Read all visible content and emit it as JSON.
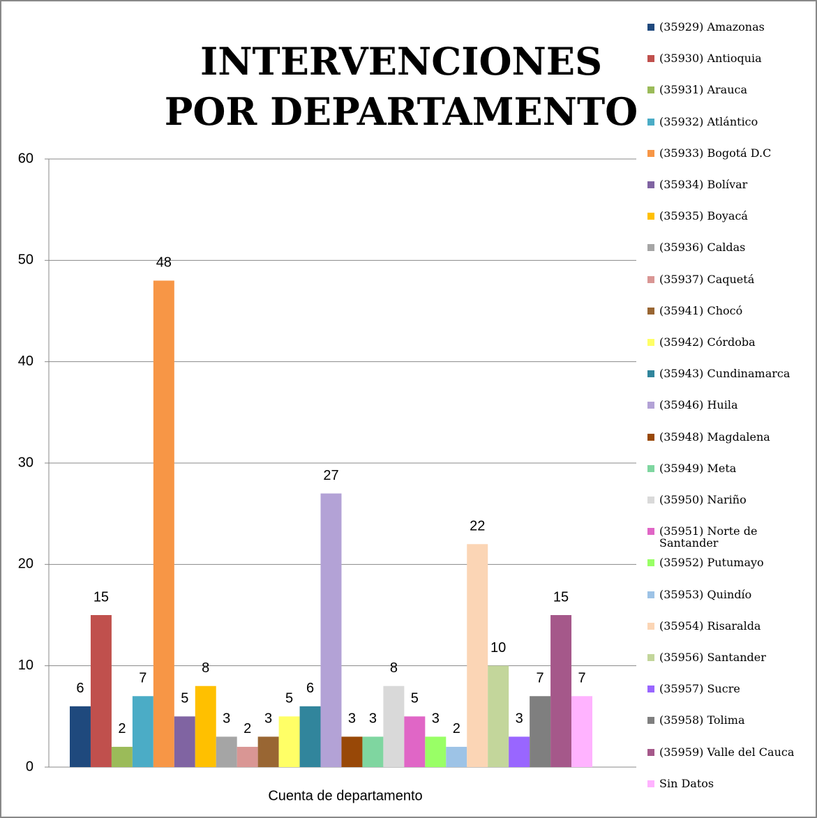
{
  "chart_data": {
    "type": "bar",
    "title": "INTERVENCIONES POR DEPARTAMENTO",
    "categories": [
      "Cuenta de departamento"
    ],
    "ylim": [
      0,
      60
    ],
    "yticks": [
      0,
      10,
      20,
      30,
      40,
      50,
      60
    ],
    "grid": true,
    "legend": "right",
    "series": [
      {
        "name": "(35929) Amazonas",
        "color": "#1f497d",
        "values": [
          6
        ]
      },
      {
        "name": "(35930) Antioquia",
        "color": "#c0504d",
        "values": [
          15
        ]
      },
      {
        "name": "(35931) Arauca",
        "color": "#9bbb59",
        "values": [
          2
        ]
      },
      {
        "name": "(35932) Atlántico",
        "color": "#4bacc6",
        "values": [
          7
        ]
      },
      {
        "name": "(35933) Bogotá D.C",
        "color": "#f79646",
        "values": [
          48
        ]
      },
      {
        "name": "(35934) Bolívar",
        "color": "#8064a2",
        "values": [
          5
        ]
      },
      {
        "name": "(35935) Boyacá",
        "color": "#ffc000",
        "values": [
          8
        ]
      },
      {
        "name": "(35936) Caldas",
        "color": "#a5a5a5",
        "values": [
          3
        ]
      },
      {
        "name": "(35937) Caquetá",
        "color": "#d99694",
        "values": [
          2
        ]
      },
      {
        "name": "(35941) Chocó",
        "color": "#996633",
        "values": [
          3
        ]
      },
      {
        "name": "(35942) Córdoba",
        "color": "#ffff66",
        "values": [
          5
        ]
      },
      {
        "name": "(35943) Cundinamarca",
        "color": "#31859c",
        "values": [
          6
        ]
      },
      {
        "name": "(35946) Huila",
        "color": "#b3a2d6",
        "values": [
          27
        ]
      },
      {
        "name": "(35948) Magdalena",
        "color": "#984807",
        "values": [
          3
        ]
      },
      {
        "name": "(35949) Meta",
        "color": "#7fd6a0",
        "values": [
          3
        ]
      },
      {
        "name": "(35950) Nariño",
        "color": "#d9d9d9",
        "values": [
          8
        ]
      },
      {
        "name": "(35951) Norte de Santander",
        "color": "#e066c6",
        "values": [
          5
        ]
      },
      {
        "name": "(35952) Putumayo",
        "color": "#99ff66",
        "values": [
          3
        ]
      },
      {
        "name": "(35953) Quindío",
        "color": "#9dc3e6",
        "values": [
          2
        ]
      },
      {
        "name": "(35954) Risaralda",
        "color": "#fbd5b5",
        "values": [
          22
        ]
      },
      {
        "name": "(35956) Santander",
        "color": "#c3d69b",
        "values": [
          10
        ]
      },
      {
        "name": "(35957) Sucre",
        "color": "#9966ff",
        "values": [
          3
        ]
      },
      {
        "name": "(35958) Tolima",
        "color": "#7f7f7f",
        "values": [
          7
        ]
      },
      {
        "name": "(35959) Valle del Cauca",
        "color": "#a5588a",
        "values": [
          15
        ]
      },
      {
        "name": "Sin Datos",
        "color": "#ffb3ff",
        "values": [
          7
        ]
      }
    ]
  }
}
